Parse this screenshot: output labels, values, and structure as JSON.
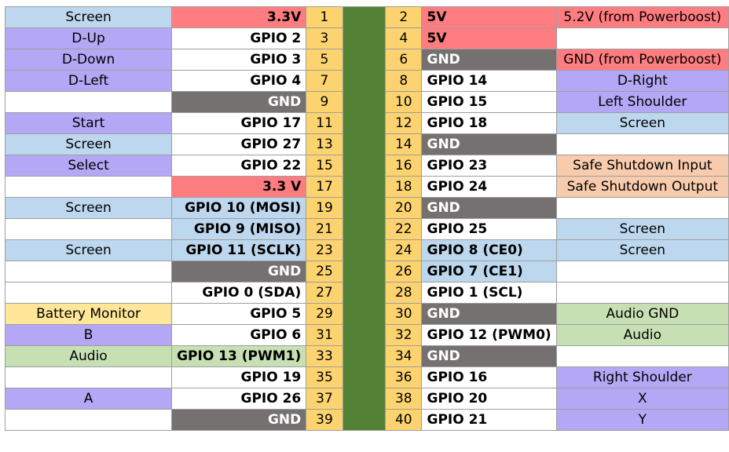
{
  "colors": {
    "screen": "#bdd7ee",
    "control": "#b4a7f5",
    "power": "#ff7c80",
    "ground": "#767171",
    "shutdown": "#f8cbad",
    "audio": "#c6e0b4",
    "battery": "#ffe699",
    "pin_number": "#fcd36f",
    "header_strip": "#538135"
  },
  "rows": [
    {
      "ld": "Screen",
      "ldc": "blue",
      "lg": "3.3V",
      "lgc": "red",
      "lp": "1",
      "rp": "2",
      "rg": "5V",
      "rgc": "red",
      "rd": "5.2V (from Powerboost)",
      "rdc": "red"
    },
    {
      "ld": "D-Up",
      "ldc": "purple",
      "lg": "GPIO 2",
      "lgc": "white",
      "lp": "3",
      "rp": "4",
      "rg": "5V",
      "rgc": "red",
      "rd": "",
      "rdc": "white"
    },
    {
      "ld": "D-Down",
      "ldc": "purple",
      "lg": "GPIO 3",
      "lgc": "white",
      "lp": "5",
      "rp": "6",
      "rg": "GND",
      "rgc": "gray",
      "rd": "GND (from Powerboost)",
      "rdc": "red"
    },
    {
      "ld": "D-Left",
      "ldc": "purple",
      "lg": "GPIO 4",
      "lgc": "white",
      "lp": "7",
      "rp": "8",
      "rg": "GPIO 14",
      "rgc": "white",
      "rd": "D-Right",
      "rdc": "purple"
    },
    {
      "ld": "",
      "ldc": "white",
      "lg": "GND",
      "lgc": "gray",
      "lp": "9",
      "rp": "10",
      "rg": "GPIO 15",
      "rgc": "white",
      "rd": "Left Shoulder",
      "rdc": "purple"
    },
    {
      "ld": "Start",
      "ldc": "purple",
      "lg": "GPIO 17",
      "lgc": "white",
      "lp": "11",
      "rp": "12",
      "rg": "GPIO 18",
      "rgc": "white",
      "rd": "Screen",
      "rdc": "blue"
    },
    {
      "ld": "Screen",
      "ldc": "blue",
      "lg": "GPIO 27",
      "lgc": "white",
      "lp": "13",
      "rp": "14",
      "rg": "GND",
      "rgc": "gray",
      "rd": "",
      "rdc": "white"
    },
    {
      "ld": "Select",
      "ldc": "purple",
      "lg": "GPIO 22",
      "lgc": "white",
      "lp": "15",
      "rp": "16",
      "rg": "GPIO 23",
      "rgc": "white",
      "rd": "Safe Shutdown Input",
      "rdc": "orange"
    },
    {
      "ld": "",
      "ldc": "white",
      "lg": "3.3 V",
      "lgc": "red",
      "lp": "17",
      "rp": "18",
      "rg": "GPIO 24",
      "rgc": "white",
      "rd": "Safe Shutdown Output",
      "rdc": "orange"
    },
    {
      "ld": "Screen",
      "ldc": "blue",
      "lg": "GPIO 10 (MOSI)",
      "lgc": "blue",
      "lp": "19",
      "rp": "20",
      "rg": "GND",
      "rgc": "gray",
      "rd": "",
      "rdc": "white"
    },
    {
      "ld": "",
      "ldc": "white",
      "lg": "GPIO 9 (MISO)",
      "lgc": "blue",
      "lp": "21",
      "rp": "22",
      "rg": "GPIO 25",
      "rgc": "white",
      "rd": "Screen",
      "rdc": "blue"
    },
    {
      "ld": "Screen",
      "ldc": "blue",
      "lg": "GPIO 11 (SCLK)",
      "lgc": "blue",
      "lp": "23",
      "rp": "24",
      "rg": "GPIO 8 (CE0)",
      "rgc": "blue",
      "rd": "Screen",
      "rdc": "blue"
    },
    {
      "ld": "",
      "ldc": "white",
      "lg": "GND",
      "lgc": "gray",
      "lp": "25",
      "rp": "26",
      "rg": "GPIO 7 (CE1)",
      "rgc": "blue",
      "rd": "",
      "rdc": "white"
    },
    {
      "ld": "",
      "ldc": "white",
      "lg": "GPIO 0 (SDA)",
      "lgc": "white",
      "lp": "27",
      "rp": "28",
      "rg": "GPIO 1 (SCL)",
      "rgc": "white",
      "rd": "",
      "rdc": "white"
    },
    {
      "ld": "Battery Monitor",
      "ldc": "yellow",
      "lg": "GPIO 5",
      "lgc": "white",
      "lp": "29",
      "rp": "30",
      "rg": "GND",
      "rgc": "gray",
      "rd": "Audio GND",
      "rdc": "green"
    },
    {
      "ld": "B",
      "ldc": "purple",
      "lg": "GPIO 6",
      "lgc": "white",
      "lp": "31",
      "rp": "32",
      "rg": "GPIO 12 (PWM0)",
      "rgc": "white",
      "rd": "Audio",
      "rdc": "green"
    },
    {
      "ld": "Audio",
      "ldc": "green",
      "lg": "GPIO 13 (PWM1)",
      "lgc": "green",
      "lp": "33",
      "rp": "34",
      "rg": "GND",
      "rgc": "gray",
      "rd": "",
      "rdc": "white"
    },
    {
      "ld": "",
      "ldc": "white",
      "lg": "GPIO 19",
      "lgc": "white",
      "lp": "35",
      "rp": "36",
      "rg": "GPIO 16",
      "rgc": "white",
      "rd": "Right Shoulder",
      "rdc": "purple"
    },
    {
      "ld": "A",
      "ldc": "purple",
      "lg": "GPIO 26",
      "lgc": "white",
      "lp": "37",
      "rp": "38",
      "rg": "GPIO 20",
      "rgc": "white",
      "rd": "X",
      "rdc": "purple"
    },
    {
      "ld": "",
      "ldc": "white",
      "lg": "GND",
      "lgc": "gray",
      "lp": "39",
      "rp": "40",
      "rg": "GPIO 21",
      "rgc": "white",
      "rd": "Y",
      "rdc": "purple"
    }
  ]
}
